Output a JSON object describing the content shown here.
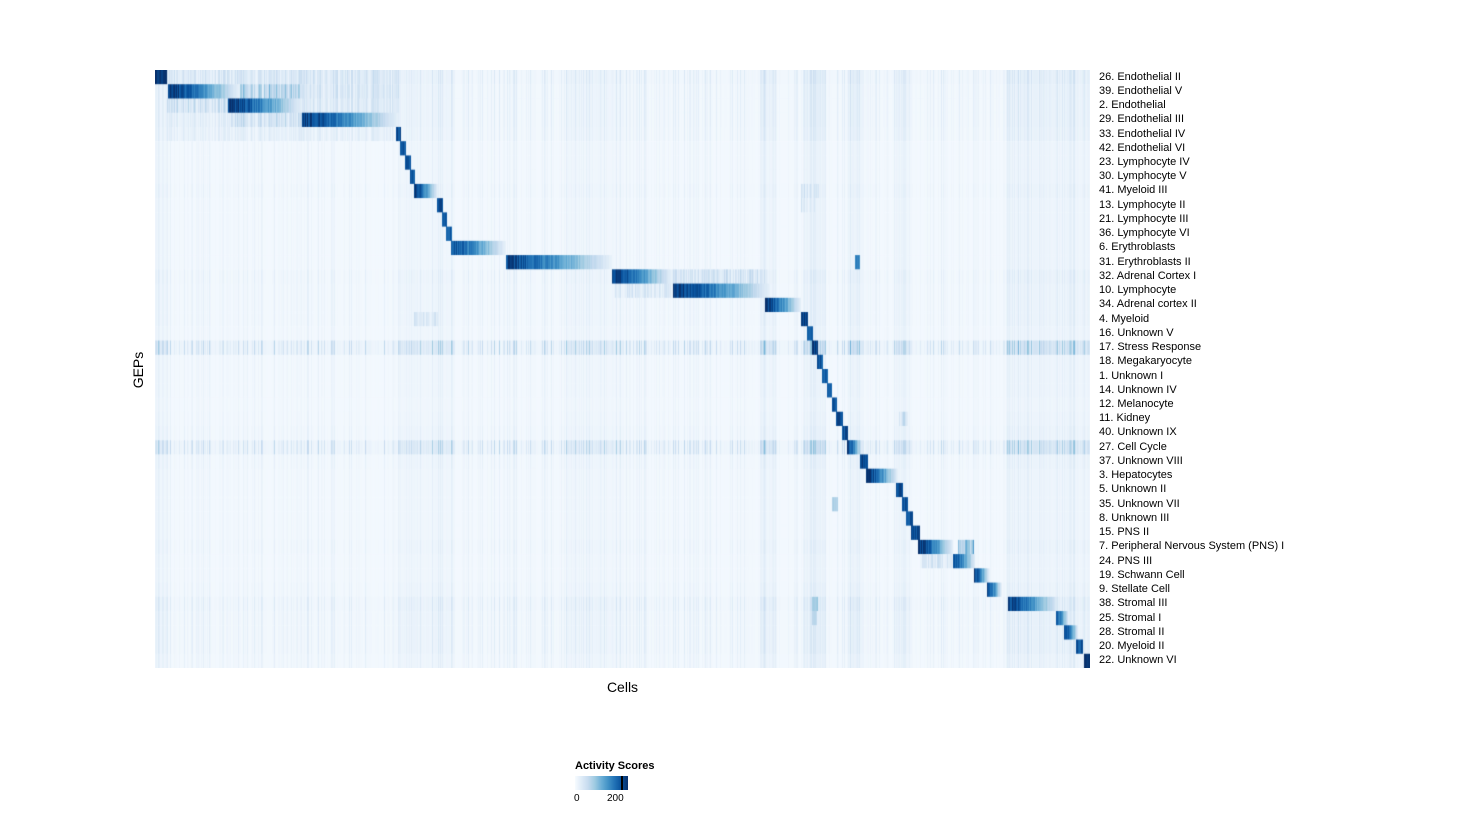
{
  "figure": {
    "xlabel": "Cells",
    "ylabel": "GEPs"
  },
  "legend": {
    "title": "Activity Scores",
    "ticks": [
      "0",
      "200"
    ]
  },
  "chart_data": {
    "type": "heatmap",
    "title": "",
    "xlabel": "Cells",
    "ylabel": "GEPs",
    "value_label": "Activity Scores",
    "value_range": [
      0,
      200
    ],
    "colormap": "Blues",
    "colormap_stops": [
      "#f7fbff",
      "#deebf7",
      "#c6dbef",
      "#9ecae1",
      "#6baed6",
      "#4292c6",
      "#2171b5",
      "#08519c",
      "#08306b"
    ],
    "description": "42 GEP rows vs cells (columns). Each row shows a dominant diagonal block of high activity; s/e are fractional column positions of activity blocks, peak is activity score.",
    "column_bands": [
      {
        "s": 0.0,
        "e": 0.012,
        "l": 0.3
      },
      {
        "s": 0.26,
        "e": 0.32,
        "l": 0.2
      },
      {
        "s": 0.44,
        "e": 0.5,
        "l": 0.15
      },
      {
        "s": 0.648,
        "e": 0.665,
        "l": 0.45
      },
      {
        "s": 0.695,
        "e": 0.717,
        "l": 0.55
      },
      {
        "s": 0.742,
        "e": 0.758,
        "l": 0.4
      },
      {
        "s": 0.793,
        "e": 0.808,
        "l": 0.35
      },
      {
        "s": 0.912,
        "e": 1.0,
        "l": 0.3
      }
    ],
    "rows": [
      {
        "label": "26. Endothelial II",
        "noise": 0.25,
        "blocks": [
          {
            "s": 0.0,
            "e": 0.012,
            "peak": 210,
            "style": "solid"
          },
          {
            "s": 0.012,
            "e": 0.26,
            "peak": 45,
            "style": "streak"
          }
        ]
      },
      {
        "label": "39. Endothelial V",
        "noise": 0.2,
        "blocks": [
          {
            "s": 0.013,
            "e": 0.09,
            "peak": 205,
            "style": "fade"
          },
          {
            "s": 0.09,
            "e": 0.155,
            "peak": 90,
            "style": "streak"
          },
          {
            "s": 0.155,
            "e": 0.26,
            "peak": 45,
            "style": "streak"
          }
        ]
      },
      {
        "label": "2. Endothelial",
        "noise": 0.2,
        "blocks": [
          {
            "s": 0.012,
            "e": 0.078,
            "peak": 60,
            "style": "streak"
          },
          {
            "s": 0.078,
            "e": 0.157,
            "peak": 205,
            "style": "fade"
          },
          {
            "s": 0.157,
            "e": 0.26,
            "peak": 40,
            "style": "streak"
          }
        ]
      },
      {
        "label": "29. Endothelial III",
        "noise": 0.2,
        "blocks": [
          {
            "s": 0.012,
            "e": 0.08,
            "peak": 30,
            "style": "streak"
          },
          {
            "s": 0.08,
            "e": 0.157,
            "peak": 55,
            "style": "streak"
          },
          {
            "s": 0.157,
            "e": 0.26,
            "peak": 200,
            "style": "fade"
          }
        ]
      },
      {
        "label": "33. Endothelial IV",
        "noise": 0.18,
        "blocks": [
          {
            "s": 0.012,
            "e": 0.255,
            "peak": 25,
            "style": "streak"
          },
          {
            "s": 0.257,
            "e": 0.263,
            "peak": 190,
            "style": "solid"
          }
        ]
      },
      {
        "label": "42. Endothelial VI",
        "noise": 0.12,
        "blocks": [
          {
            "s": 0.262,
            "e": 0.268,
            "peak": 185,
            "style": "solid"
          }
        ]
      },
      {
        "label": "23. Lymphocyte IV",
        "noise": 0.12,
        "blocks": [
          {
            "s": 0.267,
            "e": 0.273,
            "peak": 185,
            "style": "solid"
          }
        ]
      },
      {
        "label": "30. Lymphocyte V",
        "noise": 0.12,
        "blocks": [
          {
            "s": 0.272,
            "e": 0.278,
            "peak": 190,
            "style": "solid"
          }
        ]
      },
      {
        "label": "41. Myeloid III",
        "noise": 0.15,
        "blocks": [
          {
            "s": 0.277,
            "e": 0.302,
            "peak": 205,
            "style": "fade"
          },
          {
            "s": 0.69,
            "e": 0.71,
            "peak": 50,
            "style": "streak"
          }
        ]
      },
      {
        "label": "13. Lymphocyte II",
        "noise": 0.12,
        "blocks": [
          {
            "s": 0.301,
            "e": 0.307,
            "peak": 190,
            "style": "solid"
          },
          {
            "s": 0.69,
            "e": 0.705,
            "peak": 40,
            "style": "streak"
          }
        ]
      },
      {
        "label": "21. Lymphocyte III",
        "noise": 0.12,
        "blocks": [
          {
            "s": 0.306,
            "e": 0.312,
            "peak": 185,
            "style": "solid"
          }
        ]
      },
      {
        "label": "36. Lymphocyte VI",
        "noise": 0.12,
        "blocks": [
          {
            "s": 0.311,
            "e": 0.317,
            "peak": 180,
            "style": "solid"
          }
        ]
      },
      {
        "label": "6. Erythroblasts",
        "noise": 0.12,
        "blocks": [
          {
            "s": 0.316,
            "e": 0.375,
            "peak": 185,
            "style": "fade"
          }
        ]
      },
      {
        "label": "31. Erythroblasts II",
        "noise": 0.12,
        "blocks": [
          {
            "s": 0.375,
            "e": 0.488,
            "peak": 190,
            "style": "fade"
          },
          {
            "s": 0.748,
            "e": 0.754,
            "peak": 150,
            "style": "solid"
          }
        ]
      },
      {
        "label": "32. Adrenal Cortex I",
        "noise": 0.18,
        "blocks": [
          {
            "s": 0.488,
            "e": 0.552,
            "peak": 205,
            "style": "fade"
          },
          {
            "s": 0.552,
            "e": 0.655,
            "peak": 55,
            "style": "streak"
          }
        ]
      },
      {
        "label": "10. Lymphocyte",
        "noise": 0.15,
        "blocks": [
          {
            "s": 0.49,
            "e": 0.553,
            "peak": 40,
            "style": "streak"
          },
          {
            "s": 0.553,
            "e": 0.657,
            "peak": 205,
            "style": "fade"
          }
        ]
      },
      {
        "label": "34. Adrenal cortex II",
        "noise": 0.15,
        "blocks": [
          {
            "s": 0.652,
            "e": 0.69,
            "peak": 205,
            "style": "fade"
          }
        ]
      },
      {
        "label": "4. Myeloid",
        "noise": 0.15,
        "blocks": [
          {
            "s": 0.277,
            "e": 0.302,
            "peak": 45,
            "style": "streak"
          },
          {
            "s": 0.69,
            "e": 0.698,
            "peak": 205,
            "style": "solid"
          }
        ]
      },
      {
        "label": "16. Unknown V",
        "noise": 0.12,
        "blocks": [
          {
            "s": 0.697,
            "e": 0.703,
            "peak": 185,
            "style": "solid"
          }
        ]
      },
      {
        "label": "17. Stress Response",
        "noise": 0.55,
        "blocks": [
          {
            "s": 0.702,
            "e": 0.709,
            "peak": 205,
            "style": "solid"
          }
        ]
      },
      {
        "label": "18. Megakaryocyte",
        "noise": 0.12,
        "blocks": [
          {
            "s": 0.708,
            "e": 0.714,
            "peak": 185,
            "style": "solid"
          }
        ]
      },
      {
        "label": "1. Unknown I",
        "noise": 0.12,
        "blocks": [
          {
            "s": 0.713,
            "e": 0.719,
            "peak": 175,
            "style": "solid"
          }
        ]
      },
      {
        "label": "14. Unknown IV",
        "noise": 0.12,
        "blocks": [
          {
            "s": 0.718,
            "e": 0.724,
            "peak": 185,
            "style": "solid"
          }
        ]
      },
      {
        "label": "12. Melanocyte",
        "noise": 0.1,
        "blocks": [
          {
            "s": 0.723,
            "e": 0.729,
            "peak": 185,
            "style": "solid"
          }
        ]
      },
      {
        "label": "11. Kidney",
        "noise": 0.12,
        "blocks": [
          {
            "s": 0.728,
            "e": 0.735,
            "peak": 190,
            "style": "solid"
          },
          {
            "s": 0.795,
            "e": 0.805,
            "peak": 60,
            "style": "streak"
          }
        ]
      },
      {
        "label": "40. Unknown IX",
        "noise": 0.15,
        "blocks": [
          {
            "s": 0.734,
            "e": 0.741,
            "peak": 190,
            "style": "solid"
          }
        ]
      },
      {
        "label": "27. Cell Cycle",
        "noise": 0.5,
        "blocks": [
          {
            "s": 0.74,
            "e": 0.756,
            "peak": 195,
            "style": "fade"
          }
        ]
      },
      {
        "label": "37. Unknown VIII",
        "noise": 0.15,
        "blocks": [
          {
            "s": 0.754,
            "e": 0.762,
            "peak": 200,
            "style": "solid"
          }
        ]
      },
      {
        "label": "3. Hepatocytes",
        "noise": 0.12,
        "blocks": [
          {
            "s": 0.76,
            "e": 0.794,
            "peak": 205,
            "style": "fade"
          }
        ]
      },
      {
        "label": "5. Unknown II",
        "noise": 0.12,
        "blocks": [
          {
            "s": 0.792,
            "e": 0.799,
            "peak": 190,
            "style": "solid"
          }
        ]
      },
      {
        "label": "35. Unknown VII",
        "noise": 0.12,
        "blocks": [
          {
            "s": 0.724,
            "e": 0.73,
            "peak": 70,
            "style": "solid"
          },
          {
            "s": 0.798,
            "e": 0.805,
            "peak": 185,
            "style": "solid"
          }
        ]
      },
      {
        "label": "8. Unknown III",
        "noise": 0.12,
        "blocks": [
          {
            "s": 0.803,
            "e": 0.81,
            "peak": 185,
            "style": "solid"
          }
        ]
      },
      {
        "label": "15. PNS II",
        "noise": 0.12,
        "blocks": [
          {
            "s": 0.808,
            "e": 0.818,
            "peak": 190,
            "style": "solid"
          }
        ]
      },
      {
        "label": "7. Peripheral Nervous System (PNS) I",
        "noise": 0.15,
        "blocks": [
          {
            "s": 0.816,
            "e": 0.853,
            "peak": 205,
            "style": "fade"
          },
          {
            "s": 0.858,
            "e": 0.875,
            "peak": 120,
            "style": "streak"
          }
        ]
      },
      {
        "label": "24. PNS III",
        "noise": 0.12,
        "blocks": [
          {
            "s": 0.818,
            "e": 0.852,
            "peak": 50,
            "style": "streak"
          },
          {
            "s": 0.853,
            "e": 0.877,
            "peak": 190,
            "style": "fade"
          }
        ]
      },
      {
        "label": "19. Schwann Cell",
        "noise": 0.12,
        "blocks": [
          {
            "s": 0.875,
            "e": 0.892,
            "peak": 200,
            "style": "fade"
          }
        ]
      },
      {
        "label": "9. Stellate Cell",
        "noise": 0.15,
        "blocks": [
          {
            "s": 0.889,
            "e": 0.905,
            "peak": 205,
            "style": "fade"
          }
        ]
      },
      {
        "label": "38. Stromal III",
        "noise": 0.25,
        "blocks": [
          {
            "s": 0.702,
            "e": 0.709,
            "peak": 80,
            "style": "solid"
          },
          {
            "s": 0.912,
            "e": 0.967,
            "peak": 195,
            "style": "fade"
          }
        ]
      },
      {
        "label": "25. Stromal I",
        "noise": 0.2,
        "blocks": [
          {
            "s": 0.702,
            "e": 0.708,
            "peak": 60,
            "style": "solid"
          },
          {
            "s": 0.963,
            "e": 0.977,
            "peak": 190,
            "style": "fade"
          }
        ]
      },
      {
        "label": "28. Stromal II",
        "noise": 0.2,
        "blocks": [
          {
            "s": 0.972,
            "e": 0.987,
            "peak": 205,
            "style": "fade"
          }
        ]
      },
      {
        "label": "20. Myeloid II",
        "noise": 0.2,
        "blocks": [
          {
            "s": 0.985,
            "e": 0.992,
            "peak": 185,
            "style": "solid"
          }
        ]
      },
      {
        "label": "22. Unknown VI",
        "noise": 0.15,
        "blocks": [
          {
            "s": 0.993,
            "e": 1.0,
            "peak": 210,
            "style": "solid"
          }
        ]
      }
    ]
  }
}
